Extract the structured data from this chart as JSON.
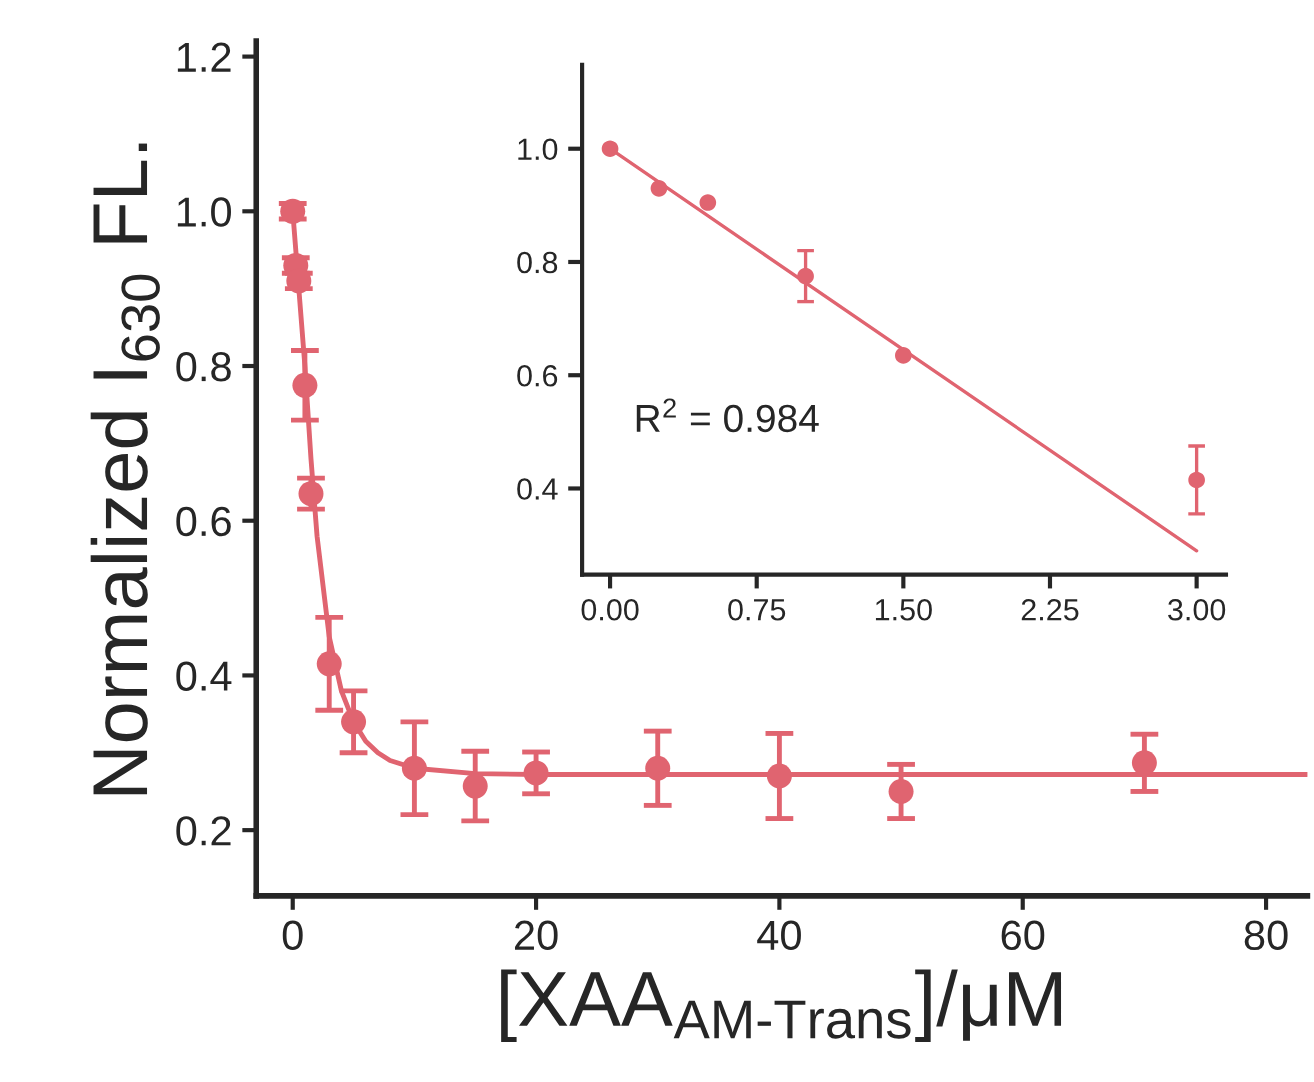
{
  "chart_data": [
    {
      "type": "scatter",
      "xlabel": "[XAA$_{AM-Trans}$]/μM",
      "ylabel": "Normalized I$_{630}$ FL.",
      "xlim": [
        -3,
        83.4
      ],
      "ylim": [
        0.115,
        1.22
      ],
      "xticks": [
        0,
        20,
        40,
        60,
        80
      ],
      "yticks": [
        0.2,
        0.4,
        0.6,
        0.8,
        {
          "value": 1.0,
          "label": "1.0"
        },
        1.2
      ],
      "grid": false,
      "series": [
        {
          "marker": "circle",
          "color": "#e06470",
          "x": [
            0,
            0.25,
            0.5,
            1,
            1.5,
            3,
            5,
            10,
            15,
            20,
            30,
            40,
            50,
            70
          ],
          "values": [
            1.0,
            0.93,
            0.91,
            0.775,
            0.635,
            0.415,
            0.34,
            0.28,
            0.257,
            0.274,
            0.28,
            0.27,
            0.25,
            0.287
          ],
          "errors": [
            0.01,
            0.01,
            0.01,
            0.045,
            0.02,
            0.06,
            0.04,
            0.06,
            0.045,
            0.027,
            0.048,
            0.055,
            0.035,
            0.037
          ]
        },
        {
          "type": "line",
          "marker": "none",
          "color": "#e06470",
          "x": [
            0,
            0.5,
            1,
            1.5,
            2,
            3,
            4,
            5,
            6,
            7,
            8,
            10,
            15,
            20,
            83.4
          ],
          "values": [
            1.0,
            0.9,
            0.8,
            0.68,
            0.58,
            0.45,
            0.38,
            0.34,
            0.315,
            0.3,
            0.29,
            0.28,
            0.273,
            0.272,
            0.272
          ]
        }
      ]
    },
    {
      "type": "scatter",
      "xlim": [
        -0.143,
        3.15
      ],
      "ylim": [
        0.248,
        1.148
      ],
      "xticks": [
        {
          "value": 0,
          "label": "0.00"
        },
        0.75,
        {
          "value": 1.5,
          "label": "1.50"
        },
        2.25,
        {
          "value": 3,
          "label": "3.00"
        }
      ],
      "yticks": [
        0.4,
        0.6,
        0.8,
        {
          "value": 1.0,
          "label": "1.0"
        }
      ],
      "grid": false,
      "annotations": [
        "R$^{2}$ = 0.984"
      ],
      "series": [
        {
          "marker": "circle",
          "color": "#e06470",
          "x": [
            0,
            0.25,
            0.5,
            1.0,
            1.5,
            3.0
          ],
          "values": [
            1.0,
            0.93,
            0.905,
            0.775,
            0.635,
            0.415
          ],
          "errors": [
            null,
            null,
            null,
            0.045,
            null,
            0.06
          ]
        },
        {
          "type": "line",
          "marker": "none",
          "color": "#e06470",
          "x": [
            0,
            3.0
          ],
          "values": [
            1.0,
            0.29
          ]
        }
      ]
    }
  ]
}
